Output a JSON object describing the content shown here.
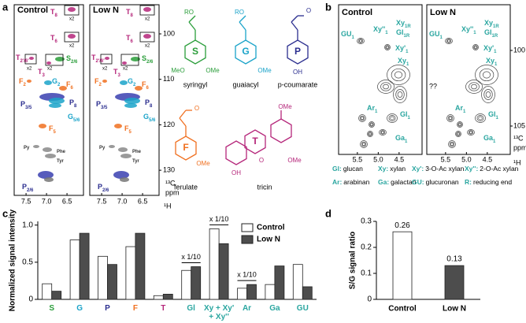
{
  "panel_labels": [
    "a",
    "b",
    "c",
    "d"
  ],
  "nmr_a": {
    "titles": [
      "Control",
      "Low N"
    ],
    "xticks": [
      7.5,
      {
        "value": 7,
        "label": "7.0"
      },
      6.5
    ],
    "yticks": [
      100,
      110,
      120,
      130
    ],
    "x_unit": "¹H",
    "y_unit": "¹³C",
    "ppm": "ppm",
    "zoom_label": "x2",
    "peaks": [
      {
        "base": "T",
        "sub": "8",
        "color": "#b5267a"
      },
      {
        "base": "T",
        "sub": "6",
        "color": "#b5267a"
      },
      {
        "base": "T",
        "sub": "2'/6'",
        "color": "#b5267a"
      },
      {
        "base": "S",
        "sub": "2/6",
        "color": "#2a9d3a"
      },
      {
        "base": "T",
        "sub": "3",
        "color": "#b5267a"
      },
      {
        "base": "F",
        "sub": "2",
        "color": "#f07020"
      },
      {
        "base": "G",
        "sub": "2",
        "color": "#1aa3c9"
      },
      {
        "base": "F",
        "sub": "6",
        "color": "#f07020"
      },
      {
        "base": "P",
        "sub": "3/5",
        "color": "#2b2e8f"
      },
      {
        "base": "P",
        "sub": "8",
        "color": "#2b2e8f"
      },
      {
        "base": "G",
        "sub": "5/6",
        "color": "#1aa3c9"
      },
      {
        "base": "F",
        "sub": "5",
        "color": "#f07020"
      },
      {
        "base": "Py",
        "sub": "",
        "color": "#333333"
      },
      {
        "base": "Phe",
        "sub": "",
        "color": "#333333"
      },
      {
        "base": "Tyr",
        "sub": "",
        "color": "#333333"
      },
      {
        "base": "P",
        "sub": "2/6",
        "color": "#2b2e8f"
      }
    ]
  },
  "structures": [
    {
      "name": "syringyl",
      "letter": "S",
      "color": "#2a9d3a",
      "groups": [
        "RO",
        "MeO",
        "OMe"
      ]
    },
    {
      "name": "guaiacyl",
      "letter": "G",
      "color": "#1aa3c9",
      "groups": [
        "RO",
        "OMe"
      ]
    },
    {
      "name": "p-coumarate",
      "letter": "P",
      "color": "#2b2e8f",
      "groups": [
        "O",
        "OH"
      ]
    },
    {
      "name": "ferulate",
      "letter": "F",
      "color": "#f07020",
      "groups": [
        "O",
        "OMe"
      ]
    },
    {
      "name": "tricin",
      "letter": "T",
      "color": "#b5267a",
      "groups": [
        "OMe",
        "OMe",
        "OH",
        "O"
      ]
    }
  ],
  "nmr_b": {
    "titles": [
      "Control",
      "Low N"
    ],
    "xticks": [
      5.5,
      {
        "value": 5,
        "label": "5.0"
      },
      4.5
    ],
    "yticks": [
      100,
      105
    ],
    "x_unit": "¹H",
    "y_unit": "¹³C",
    "ppm": "ppm",
    "unknown": "??",
    "peaks": [
      {
        "base": "GU",
        "sub": "1"
      },
      {
        "base": "Xy''",
        "sub": "1"
      },
      {
        "base": "Xy",
        "sub": "1R"
      },
      {
        "base": "Gl",
        "sub": "1R"
      },
      {
        "base": "Xy'",
        "sub": "1"
      },
      {
        "base": "Xy",
        "sub": "1"
      },
      {
        "base": "Gl",
        "sub": "1"
      },
      {
        "base": "Ar",
        "sub": "1"
      },
      {
        "base": "Ga",
        "sub": "1"
      }
    ],
    "legend": [
      {
        "abbr": "Gl:",
        "name": "glucan"
      },
      {
        "abbr": "Xy:",
        "name": "xylan"
      },
      {
        "abbr": "Xy':",
        "name": "3-O-Ac xylan"
      },
      {
        "abbr": "Xy'':",
        "name": "2-O-Ac xylan"
      },
      {
        "abbr": "Ar:",
        "name": "arabinan"
      },
      {
        "abbr": "Ga:",
        "name": "galactan"
      },
      {
        "abbr": "GU:",
        "name": "glucuronan"
      },
      {
        "abbr": "R:",
        "name": "reducing end"
      }
    ]
  },
  "chart_data": [
    {
      "type": "bar",
      "ylabel": "Normalized signal intensity",
      "categories": [
        "S",
        "G",
        "P",
        "F",
        "T",
        "Gl",
        "Xy + Xy' + Xy''",
        "Ar",
        "Ga",
        "GU"
      ],
      "category_colors": [
        "#2a9d3a",
        "#1aa3c9",
        "#2b2e8f",
        "#f07020",
        "#b5267a",
        "#2aa6a0",
        "#2aa6a0",
        "#2aa6a0",
        "#2aa6a0",
        "#2aa6a0"
      ],
      "series": [
        {
          "name": "Control",
          "color": "#ffffff",
          "values": [
            0.21,
            0.8,
            0.58,
            0.71,
            0.05,
            0.39,
            0.95,
            0.15,
            0.2,
            0.47
          ]
        },
        {
          "name": "Low N",
          "color": "#4d4d4d",
          "values": [
            0.11,
            0.89,
            0.47,
            0.89,
            0.07,
            0.44,
            0.75,
            0.2,
            0.45,
            0.17
          ]
        }
      ],
      "annotations": [
        {
          "text": "x 1/10",
          "category": 5
        },
        {
          "text": "x 1/10",
          "category": 6
        },
        {
          "text": "x 1/10",
          "category": 7
        }
      ],
      "ylim": [
        0,
        1.05
      ],
      "yticks": [
        0,
        0.5,
        {
          "value": 1,
          "label": "1.0"
        }
      ],
      "legend": "upper right"
    },
    {
      "type": "bar",
      "ylabel": "S/G signal ratio",
      "categories": [
        "Control",
        "Low N"
      ],
      "colors": [
        "#ffffff",
        "#4d4d4d"
      ],
      "values": [
        0.26,
        0.13
      ],
      "ylim": [
        0,
        0.3
      ],
      "yticks": [
        0,
        0.1,
        0.2,
        0.3
      ]
    }
  ]
}
